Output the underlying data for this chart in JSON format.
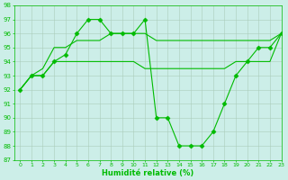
{
  "bg_color": "#cceee8",
  "grid_color": "#aaccbb",
  "line_color": "#00bb00",
  "xlabel": "Humidité relative (%)",
  "ylim": [
    87,
    98
  ],
  "xlim": [
    -0.5,
    23
  ],
  "yticks": [
    87,
    88,
    89,
    90,
    91,
    92,
    93,
    94,
    95,
    96,
    97,
    98
  ],
  "xticks": [
    0,
    1,
    2,
    3,
    4,
    5,
    6,
    7,
    8,
    9,
    10,
    11,
    12,
    13,
    14,
    15,
    16,
    17,
    18,
    19,
    20,
    21,
    22,
    23
  ],
  "series1_x": [
    0,
    1,
    2,
    3,
    4,
    5,
    6,
    7,
    8,
    9,
    10,
    11,
    12,
    13,
    14,
    15,
    16,
    17,
    18,
    19,
    20,
    21,
    22,
    23
  ],
  "series1_y": [
    92,
    93,
    93,
    94,
    94,
    94,
    94,
    94,
    94,
    94,
    94,
    93.5,
    93.5,
    93.5,
    93.5,
    93.5,
    93.5,
    93.5,
    93.5,
    94,
    94,
    94,
    94,
    96
  ],
  "series2_x": [
    0,
    1,
    2,
    3,
    4,
    5,
    6,
    7,
    8,
    9,
    10,
    11,
    12,
    13,
    14,
    15,
    16,
    17,
    18,
    19,
    20,
    21,
    22,
    23
  ],
  "series2_y": [
    92,
    93,
    93.5,
    95,
    95,
    95.5,
    95.5,
    95.5,
    96,
    96,
    96,
    96,
    95.5,
    95.5,
    95.5,
    95.5,
    95.5,
    95.5,
    95.5,
    95.5,
    95.5,
    95.5,
    95.5,
    96
  ],
  "series3_x": [
    0,
    1,
    2,
    3,
    4,
    5,
    6,
    7,
    8,
    9,
    10,
    11,
    12,
    13,
    14,
    15,
    16,
    17,
    18,
    19,
    20,
    21,
    22,
    23
  ],
  "series3_y": [
    92,
    93,
    93,
    94,
    94.5,
    96,
    97,
    97,
    96,
    96,
    96,
    97,
    90,
    90,
    88,
    88,
    88,
    89,
    91,
    93,
    94,
    95,
    95,
    96
  ],
  "marker": "D",
  "markersize": 2.5,
  "tick_fontsize": 5,
  "xlabel_fontsize": 6,
  "linewidth": 0.8
}
